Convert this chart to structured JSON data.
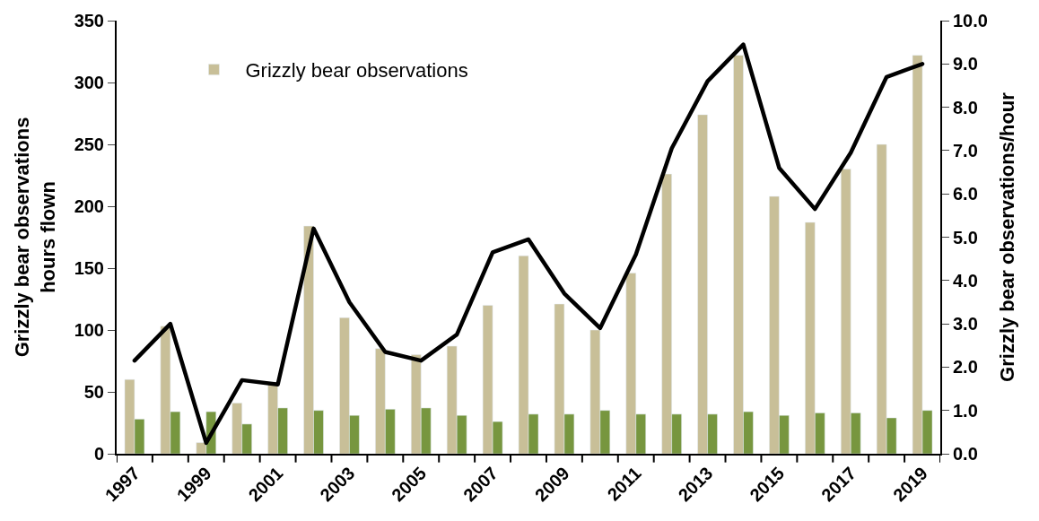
{
  "chart_data": {
    "type": "bar",
    "ylabel": "Grizzly bear observations\nhours flown",
    "y2label": "Grizzly bear observations/hour",
    "categories": [
      "1997",
      null,
      "1999",
      null,
      "2001",
      null,
      "2003",
      null,
      "2005",
      null,
      "2007",
      null,
      "2009",
      null,
      "2011",
      null,
      "2013",
      null,
      "2015",
      null,
      "2017",
      null,
      "2019"
    ],
    "series": [
      {
        "name": "Grizzly bear observations",
        "color": "#c8bf98",
        "values": [
          60,
          103,
          9,
          41,
          58,
          184,
          110,
          85,
          80,
          87,
          120,
          160,
          121,
          100,
          146,
          226,
          274,
          322,
          208,
          187,
          230,
          250,
          322
        ]
      },
      {
        "type": "bar",
        "color": "#77963f",
        "values": [
          28,
          34,
          34,
          24,
          37,
          35,
          31,
          36,
          37,
          31,
          26,
          32,
          32,
          35,
          32,
          32,
          32,
          34,
          31,
          33,
          33,
          29,
          35
        ]
      },
      {
        "type": "line",
        "axis": "y2",
        "color": "#000000",
        "values": [
          2.15,
          3.0,
          0.25,
          1.7,
          1.6,
          5.2,
          3.5,
          2.35,
          2.15,
          2.75,
          4.65,
          4.95,
          3.7,
          2.9,
          4.6,
          7.05,
          8.6,
          9.45,
          6.6,
          5.65,
          6.95,
          8.7,
          9.0
        ]
      }
    ],
    "ylim": [
      0,
      350
    ],
    "yticks": [
      0,
      50,
      100,
      150,
      200,
      250,
      300,
      350
    ],
    "y2lim": [
      0,
      10
    ],
    "y2ticks": [
      {
        "value": 0,
        "label": "0.0"
      },
      {
        "value": 1,
        "label": "1.0"
      },
      {
        "value": 2,
        "label": "2.0"
      },
      {
        "value": 3,
        "label": "3.0"
      },
      {
        "value": 4,
        "label": "4.0"
      },
      {
        "value": 5,
        "label": "5.0"
      },
      {
        "value": 6,
        "label": "6.0"
      },
      {
        "value": 7,
        "label": "7.0"
      },
      {
        "value": 8,
        "label": "8.0"
      },
      {
        "value": 9,
        "label": "9.0"
      },
      {
        "value": 10,
        "label": "10.0"
      }
    ],
    "legend": "top left",
    "marker": "none",
    "line_style": "solid"
  }
}
